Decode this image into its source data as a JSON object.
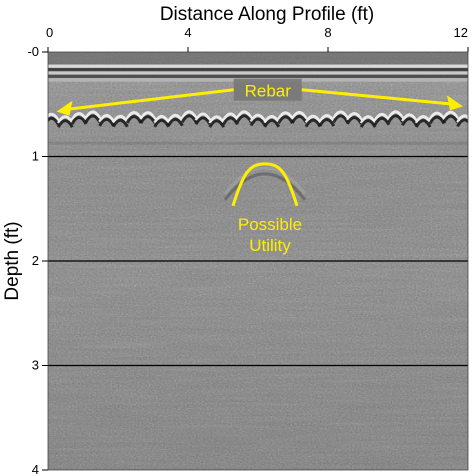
{
  "chart_data": {
    "type": "heatmap",
    "subtype": "gpr-radargram",
    "title": "",
    "xlabel": "Distance Along Profile (ft)",
    "ylabel": "Depth (ft)",
    "xaxis_position": "top",
    "xlim": [
      0,
      12
    ],
    "ylim": [
      0,
      4
    ],
    "y_inverted": true,
    "xticks": [
      0,
      4,
      8,
      12
    ],
    "xtick_labels": [
      "0",
      "4",
      "8",
      "12"
    ],
    "yticks": [
      0,
      1,
      2,
      3,
      4
    ],
    "ytick_labels": [
      "-0",
      "1",
      "2",
      "3",
      "4"
    ],
    "grid": {
      "horizontal_lines_at": [
        1,
        2,
        3
      ],
      "vertical": false
    },
    "colormap": "grayscale",
    "reflectors": [
      {
        "name": "surface",
        "depth_from": 0.12,
        "depth_to": 0.28
      },
      {
        "name": "rebar-row",
        "depth_center": 0.6,
        "x_from": 0.1,
        "x_to": 11.9
      },
      {
        "name": "utility-hyperbola",
        "apex_x": 6.2,
        "apex_depth": 1.07
      }
    ],
    "annotations": [
      {
        "text": "Rebar",
        "color": "#ffee00",
        "arrows": [
          {
            "x": 0.3,
            "depth": 0.58
          },
          {
            "x": 11.8,
            "depth": 0.53
          }
        ]
      },
      {
        "text": [
          "Possible",
          "Utility"
        ],
        "color": "#ffee00",
        "target": {
          "x": 6.2,
          "depth": 1.07
        }
      }
    ]
  }
}
